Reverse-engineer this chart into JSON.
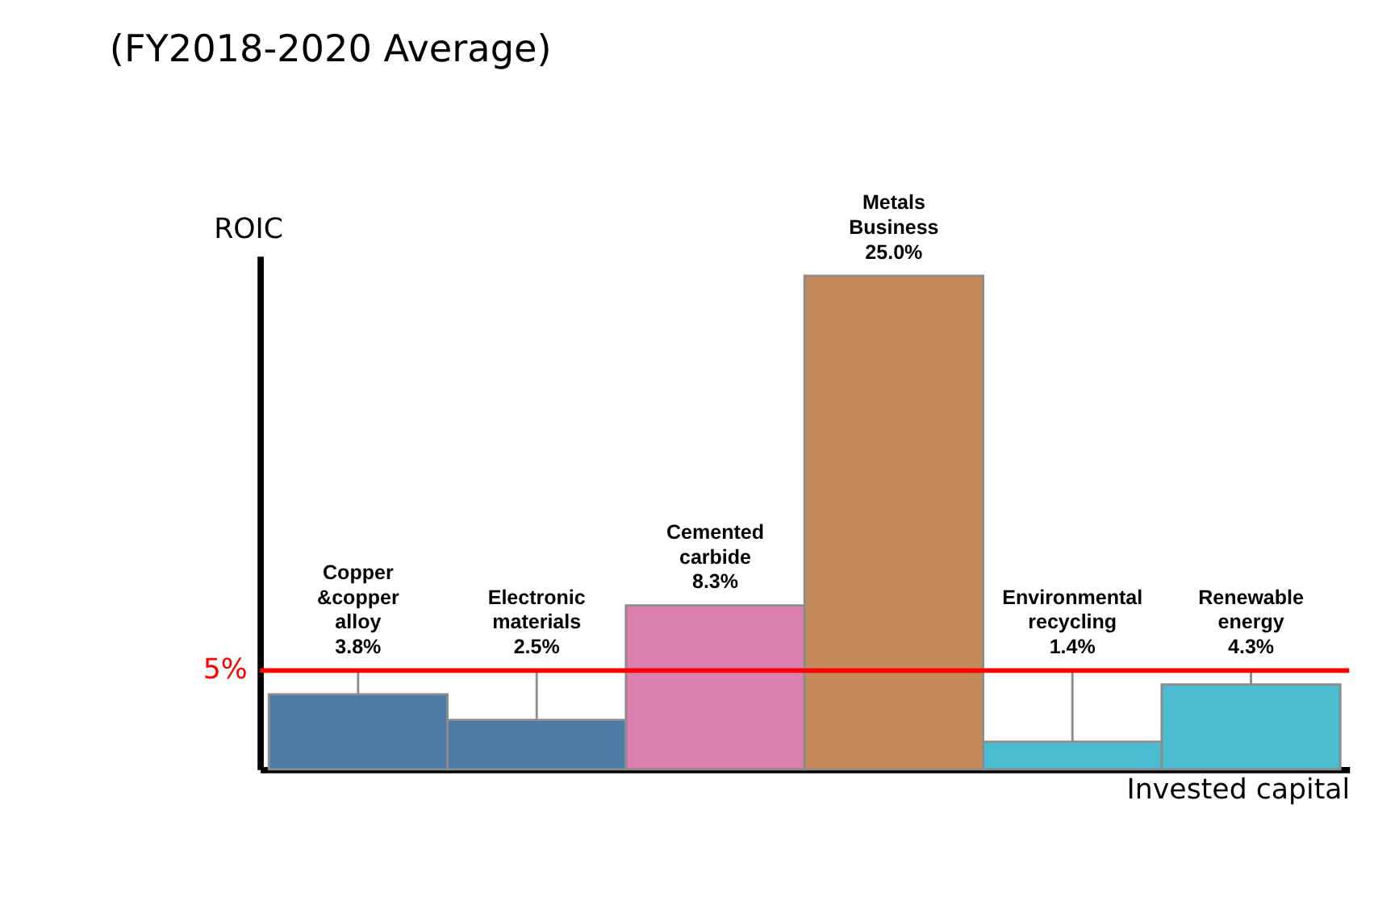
{
  "chart_data": {
    "type": "bar",
    "title": "(FY2018-2020 Average)",
    "xlabel": "Invested capital",
    "ylabel": "ROIC",
    "categories": [
      "Copper &copper alloy",
      "Electronic materials",
      "Cemented carbide",
      "Metals Business",
      "Environmental recycling",
      "Renewable energy"
    ],
    "values": [
      3.8,
      2.5,
      8.3,
      25.0,
      1.4,
      4.3
    ],
    "value_labels": [
      "3.8%",
      "2.5%",
      "8.3%",
      "25.0%",
      "1.4%",
      "4.3%"
    ],
    "colors": [
      "#4e7aa8",
      "#4e7aa8",
      "#dc7fb0",
      "#c48a5c",
      "#4bbcd0",
      "#4bbcd0"
    ],
    "ylim": [
      0,
      26
    ],
    "ref_lines": [
      {
        "axis": "y",
        "value": 5,
        "label": "5%",
        "color": "#ff0000"
      }
    ],
    "tick_labels": false,
    "grid": false,
    "legend": false
  }
}
